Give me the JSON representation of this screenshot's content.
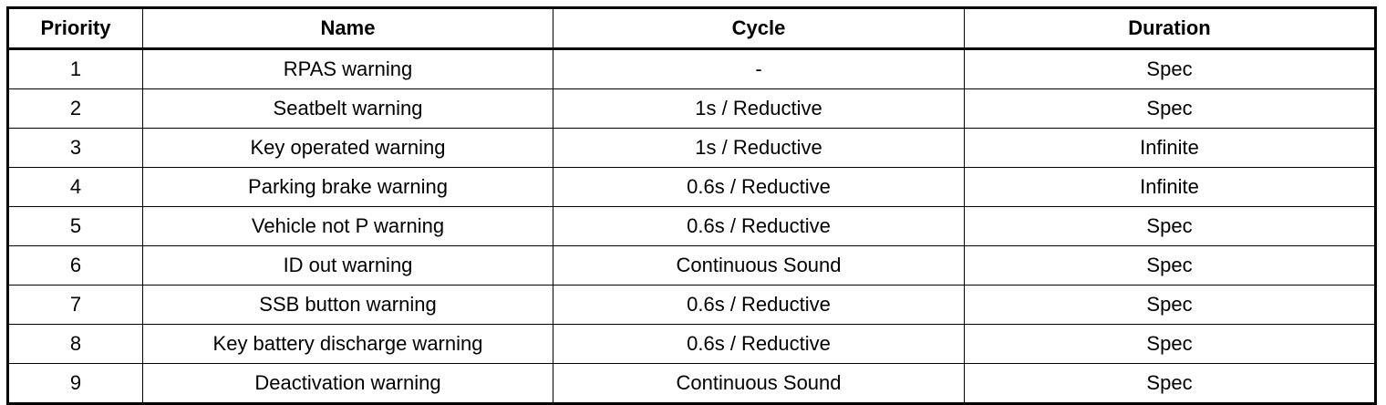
{
  "table": {
    "header": [
      "Priority",
      "Name",
      "Cycle",
      "Duration"
    ],
    "rows": [
      [
        "1",
        "RPAS warning",
        "-",
        "Spec"
      ],
      [
        "2",
        "Seatbelt warning",
        "1s / Reductive",
        "Spec"
      ],
      [
        "3",
        "Key operated warning",
        "1s / Reductive",
        "Infinite"
      ],
      [
        "4",
        "Parking brake warning",
        "0.6s / Reductive",
        "Infinite"
      ],
      [
        "5",
        "Vehicle not P warning",
        "0.6s / Reductive",
        "Spec"
      ],
      [
        "6",
        "ID out warning",
        "Continuous Sound",
        "Spec"
      ],
      [
        "7",
        "SSB button warning",
        "0.6s / Reductive",
        "Spec"
      ],
      [
        "8",
        "Key battery discharge warning",
        "0.6s / Reductive",
        "Spec"
      ],
      [
        "9",
        "Deactivation warning",
        "Continuous Sound",
        "Spec"
      ]
    ]
  }
}
